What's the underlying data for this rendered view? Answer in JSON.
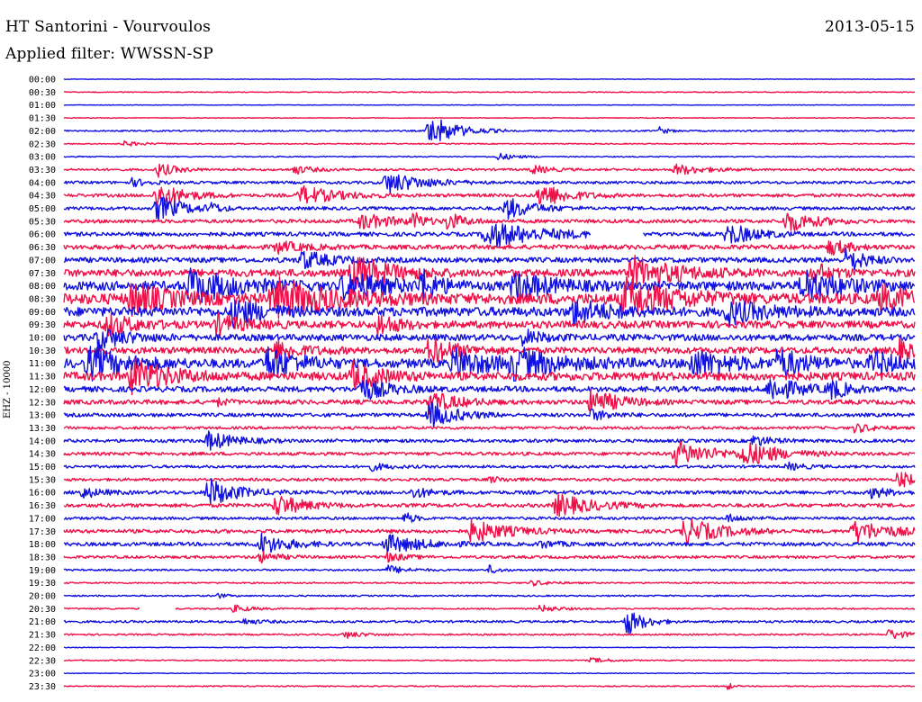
{
  "header": {
    "station": "HT Santorini - Vourvoulos",
    "date": "2013-05-15",
    "filter": "Applied filter: WWSSN-SP"
  },
  "chart_data": {
    "type": "line",
    "title": "HT Santorini - Vourvoulos",
    "subtitle": "Applied filter: WWSSN-SP",
    "date": "2013-05-15",
    "ylabel": "EHZ - 10000",
    "xlabel": "",
    "grid": false,
    "series_colors": [
      "#1010e0",
      "#f01048"
    ],
    "rows": [
      {
        "time": "00:00",
        "noise": 0.3,
        "events": []
      },
      {
        "time": "00:30",
        "noise": 0.5,
        "events": []
      },
      {
        "time": "01:00",
        "noise": 0.3,
        "events": []
      },
      {
        "time": "01:30",
        "noise": 0.4,
        "events": []
      },
      {
        "time": "02:00",
        "noise": 0.8,
        "events": [
          {
            "at": 0.43,
            "amp": 18,
            "dur": 0.03
          },
          {
            "at": 0.7,
            "amp": 4,
            "dur": 0.01
          }
        ]
      },
      {
        "time": "02:30",
        "noise": 0.6,
        "events": [
          {
            "at": 0.07,
            "amp": 3,
            "dur": 0.02
          }
        ]
      },
      {
        "time": "03:00",
        "noise": 0.6,
        "events": [
          {
            "at": 0.51,
            "amp": 4,
            "dur": 0.02
          }
        ]
      },
      {
        "time": "03:30",
        "noise": 1.2,
        "events": [
          {
            "at": 0.11,
            "amp": 8,
            "dur": 0.02
          },
          {
            "at": 0.27,
            "amp": 5,
            "dur": 0.02
          },
          {
            "at": 0.55,
            "amp": 5,
            "dur": 0.02
          },
          {
            "at": 0.72,
            "amp": 6,
            "dur": 0.03
          }
        ]
      },
      {
        "time": "04:00",
        "noise": 1.5,
        "events": [
          {
            "at": 0.38,
            "amp": 12,
            "dur": 0.04
          },
          {
            "at": 0.08,
            "amp": 4,
            "dur": 0.02
          }
        ]
      },
      {
        "time": "04:30",
        "noise": 1.8,
        "events": [
          {
            "at": 0.11,
            "amp": 14,
            "dur": 0.03
          },
          {
            "at": 0.28,
            "amp": 10,
            "dur": 0.04
          },
          {
            "at": 0.56,
            "amp": 14,
            "dur": 0.03
          }
        ]
      },
      {
        "time": "05:00",
        "noise": 1.8,
        "events": [
          {
            "at": 0.11,
            "amp": 14,
            "dur": 0.03
          },
          {
            "at": 0.52,
            "amp": 12,
            "dur": 0.03
          },
          {
            "at": 0.17,
            "amp": 6,
            "dur": 0.01
          }
        ]
      },
      {
        "time": "05:30",
        "noise": 2.0,
        "events": [
          {
            "at": 0.35,
            "amp": 8,
            "dur": 0.04
          },
          {
            "at": 0.41,
            "amp": 10,
            "dur": 0.01
          },
          {
            "at": 0.45,
            "amp": 9,
            "dur": 0.02
          },
          {
            "at": 0.85,
            "amp": 12,
            "dur": 0.03
          }
        ]
      },
      {
        "time": "06:00",
        "noise": 2.2,
        "events": [
          {
            "at": 0.5,
            "amp": 14,
            "dur": 0.06
          },
          {
            "at": 0.78,
            "amp": 12,
            "dur": 0.03
          }
        ],
        "gap": [
          0.62,
          0.68
        ]
      },
      {
        "time": "06:30",
        "noise": 2.5,
        "events": [
          {
            "at": 0.25,
            "amp": 6,
            "dur": 0.03
          },
          {
            "at": 0.9,
            "amp": 9,
            "dur": 0.02
          }
        ]
      },
      {
        "time": "07:00",
        "noise": 2.8,
        "events": [
          {
            "at": 0.28,
            "amp": 10,
            "dur": 0.03
          },
          {
            "at": 0.92,
            "amp": 14,
            "dur": 0.02
          }
        ]
      },
      {
        "time": "07:30",
        "noise": 4.0,
        "events": [
          {
            "at": 0.34,
            "amp": 20,
            "dur": 0.04
          },
          {
            "at": 0.67,
            "amp": 16,
            "dur": 0.05
          },
          {
            "at": 0.88,
            "amp": 12,
            "dur": 0.02
          }
        ]
      },
      {
        "time": "08:00",
        "noise": 5.0,
        "events": [
          {
            "at": 0.15,
            "amp": 18,
            "dur": 0.05
          },
          {
            "at": 0.33,
            "amp": 16,
            "dur": 0.04
          },
          {
            "at": 0.42,
            "amp": 16,
            "dur": 0.02
          },
          {
            "at": 0.53,
            "amp": 14,
            "dur": 0.04
          },
          {
            "at": 0.87,
            "amp": 18,
            "dur": 0.04
          }
        ]
      },
      {
        "time": "08:30",
        "noise": 6.0,
        "events": [
          {
            "at": 0.08,
            "amp": 16,
            "dur": 0.04
          },
          {
            "at": 0.25,
            "amp": 20,
            "dur": 0.06
          },
          {
            "at": 0.66,
            "amp": 20,
            "dur": 0.05
          },
          {
            "at": 0.96,
            "amp": 14,
            "dur": 0.03
          }
        ]
      },
      {
        "time": "09:00",
        "noise": 5.0,
        "events": [
          {
            "at": 0.2,
            "amp": 14,
            "dur": 0.03
          },
          {
            "at": 0.6,
            "amp": 12,
            "dur": 0.04
          },
          {
            "at": 0.78,
            "amp": 12,
            "dur": 0.04
          }
        ]
      },
      {
        "time": "09:30",
        "noise": 4.0,
        "events": [
          {
            "at": 0.05,
            "amp": 12,
            "dur": 0.03
          },
          {
            "at": 0.18,
            "amp": 10,
            "dur": 0.03
          },
          {
            "at": 0.37,
            "amp": 12,
            "dur": 0.02
          }
        ]
      },
      {
        "time": "10:00",
        "noise": 3.5,
        "events": [
          {
            "at": 0.04,
            "amp": 12,
            "dur": 0.03
          },
          {
            "at": 0.54,
            "amp": 8,
            "dur": 0.02
          }
        ]
      },
      {
        "time": "10:30",
        "noise": 3.5,
        "events": [
          {
            "at": 0.25,
            "amp": 10,
            "dur": 0.03
          },
          {
            "at": 0.43,
            "amp": 14,
            "dur": 0.03
          },
          {
            "at": 0.98,
            "amp": 12,
            "dur": 0.02
          }
        ]
      },
      {
        "time": "11:00",
        "noise": 5.0,
        "events": [
          {
            "at": 0.03,
            "amp": 16,
            "dur": 0.04
          },
          {
            "at": 0.24,
            "amp": 18,
            "dur": 0.03
          },
          {
            "at": 0.46,
            "amp": 14,
            "dur": 0.04
          },
          {
            "at": 0.53,
            "amp": 14,
            "dur": 0.05
          },
          {
            "at": 0.74,
            "amp": 14,
            "dur": 0.04
          },
          {
            "at": 0.84,
            "amp": 14,
            "dur": 0.03
          },
          {
            "at": 0.95,
            "amp": 12,
            "dur": 0.03
          }
        ]
      },
      {
        "time": "11:30",
        "noise": 4.5,
        "events": [
          {
            "at": 0.08,
            "amp": 18,
            "dur": 0.04
          },
          {
            "at": 0.34,
            "amp": 14,
            "dur": 0.03
          }
        ]
      },
      {
        "time": "12:00",
        "noise": 3.0,
        "events": [
          {
            "at": 0.35,
            "amp": 12,
            "dur": 0.03
          },
          {
            "at": 0.83,
            "amp": 14,
            "dur": 0.03
          },
          {
            "at": 0.9,
            "amp": 10,
            "dur": 0.02
          }
        ]
      },
      {
        "time": "12:30",
        "noise": 2.5,
        "events": [
          {
            "at": 0.43,
            "amp": 12,
            "dur": 0.03
          },
          {
            "at": 0.62,
            "amp": 14,
            "dur": 0.03
          },
          {
            "at": 0.18,
            "amp": 4,
            "dur": 0.01
          }
        ]
      },
      {
        "time": "13:00",
        "noise": 2.0,
        "events": [
          {
            "at": 0.43,
            "amp": 14,
            "dur": 0.03
          },
          {
            "at": 0.62,
            "amp": 6,
            "dur": 0.02
          }
        ]
      },
      {
        "time": "13:30",
        "noise": 1.5,
        "events": [
          {
            "at": 0.93,
            "amp": 5,
            "dur": 0.02
          }
        ]
      },
      {
        "time": "14:00",
        "noise": 1.8,
        "events": [
          {
            "at": 0.17,
            "amp": 10,
            "dur": 0.03
          },
          {
            "at": 0.81,
            "amp": 6,
            "dur": 0.02
          }
        ]
      },
      {
        "time": "14:30",
        "noise": 1.8,
        "events": [
          {
            "at": 0.72,
            "amp": 14,
            "dur": 0.04
          },
          {
            "at": 0.8,
            "amp": 12,
            "dur": 0.04
          }
        ]
      },
      {
        "time": "15:00",
        "noise": 1.5,
        "events": [
          {
            "at": 0.36,
            "amp": 4,
            "dur": 0.02
          },
          {
            "at": 0.85,
            "amp": 4,
            "dur": 0.02
          }
        ]
      },
      {
        "time": "15:30",
        "noise": 1.5,
        "events": [
          {
            "at": 0.98,
            "amp": 10,
            "dur": 0.02
          },
          {
            "at": 0.5,
            "amp": 3,
            "dur": 0.02
          }
        ]
      },
      {
        "time": "16:00",
        "noise": 2.0,
        "events": [
          {
            "at": 0.02,
            "amp": 6,
            "dur": 0.02
          },
          {
            "at": 0.17,
            "amp": 16,
            "dur": 0.03
          },
          {
            "at": 0.41,
            "amp": 6,
            "dur": 0.02
          },
          {
            "at": 0.95,
            "amp": 6,
            "dur": 0.02
          }
        ]
      },
      {
        "time": "16:30",
        "noise": 2.0,
        "events": [
          {
            "at": 0.25,
            "amp": 12,
            "dur": 0.03
          },
          {
            "at": 0.58,
            "amp": 12,
            "dur": 0.04
          }
        ]
      },
      {
        "time": "17:00",
        "noise": 1.5,
        "events": [
          {
            "at": 0.4,
            "amp": 8,
            "dur": 0.01
          },
          {
            "at": 0.78,
            "amp": 4,
            "dur": 0.02
          }
        ]
      },
      {
        "time": "17:30",
        "noise": 2.0,
        "events": [
          {
            "at": 0.48,
            "amp": 12,
            "dur": 0.04
          },
          {
            "at": 0.73,
            "amp": 14,
            "dur": 0.04
          },
          {
            "at": 0.93,
            "amp": 12,
            "dur": 0.04
          }
        ]
      },
      {
        "time": "18:00",
        "noise": 2.0,
        "events": [
          {
            "at": 0.23,
            "amp": 12,
            "dur": 0.03
          },
          {
            "at": 0.38,
            "amp": 10,
            "dur": 0.04
          },
          {
            "at": 0.56,
            "amp": 4,
            "dur": 0.02
          }
        ]
      },
      {
        "time": "18:30",
        "noise": 1.5,
        "events": [
          {
            "at": 0.23,
            "amp": 6,
            "dur": 0.02
          },
          {
            "at": 0.38,
            "amp": 5,
            "dur": 0.02
          }
        ]
      },
      {
        "time": "19:00",
        "noise": 1.0,
        "events": [
          {
            "at": 0.38,
            "amp": 5,
            "dur": 0.02
          },
          {
            "at": 0.5,
            "amp": 5,
            "dur": 0.01
          }
        ]
      },
      {
        "time": "19:30",
        "noise": 0.8,
        "events": [
          {
            "at": 0.55,
            "amp": 3,
            "dur": 0.02
          }
        ]
      },
      {
        "time": "20:00",
        "noise": 0.8,
        "events": [
          {
            "at": 0.18,
            "amp": 3,
            "dur": 0.01
          }
        ]
      },
      {
        "time": "20:30",
        "noise": 0.8,
        "events": [
          {
            "at": 0.2,
            "amp": 4,
            "dur": 0.02
          },
          {
            "at": 0.56,
            "amp": 4,
            "dur": 0.02
          }
        ],
        "gap": [
          0.09,
          0.13
        ]
      },
      {
        "time": "21:00",
        "noise": 1.2,
        "events": [
          {
            "at": 0.66,
            "amp": 16,
            "dur": 0.02
          },
          {
            "at": 0.21,
            "amp": 3,
            "dur": 0.02
          }
        ]
      },
      {
        "time": "21:30",
        "noise": 0.9,
        "events": [
          {
            "at": 0.33,
            "amp": 4,
            "dur": 0.02
          },
          {
            "at": 0.97,
            "amp": 6,
            "dur": 0.02
          }
        ]
      },
      {
        "time": "22:00",
        "noise": 0.4,
        "events": []
      },
      {
        "time": "22:30",
        "noise": 0.6,
        "events": [
          {
            "at": 0.62,
            "amp": 3,
            "dur": 0.02
          }
        ]
      },
      {
        "time": "23:00",
        "noise": 0.4,
        "events": []
      },
      {
        "time": "23:30",
        "noise": 0.6,
        "events": [
          {
            "at": 0.78,
            "amp": 5,
            "dur": 0.005
          }
        ]
      }
    ]
  }
}
